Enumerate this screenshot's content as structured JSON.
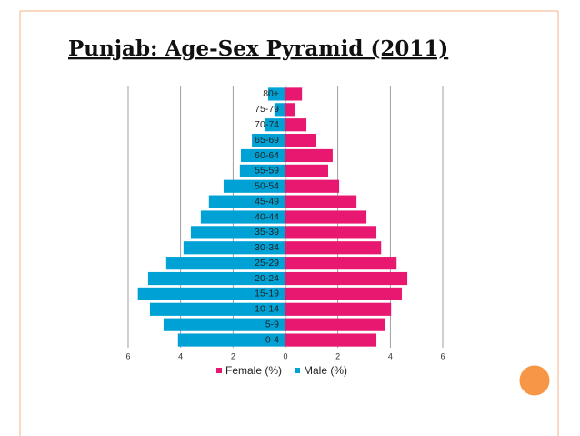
{
  "chart_data": {
    "type": "bar",
    "orientation": "horizontal",
    "stacked": true,
    "title": "Punjab: Age-Sex Pyramid (2011)",
    "categories": [
      "0-4",
      "5-9",
      "10-14",
      "15-19",
      "20-24",
      "25-29",
      "30-34",
      "35-39",
      "40-44",
      "45-49",
      "50-54",
      "55-59",
      "60-64",
      "65-69",
      "70-74",
      "75-79",
      "80+"
    ],
    "series": [
      {
        "name": "Female (%)",
        "color": "#e8176f",
        "values": [
          3.47,
          3.78,
          4.03,
          4.44,
          4.65,
          4.24,
          3.65,
          3.47,
          3.09,
          2.71,
          2.05,
          1.63,
          1.8,
          1.18,
          0.8,
          0.38,
          0.63
        ]
      },
      {
        "name": "Male (%)",
        "color": "#00a2d6",
        "values": [
          -4.1,
          -4.65,
          -5.17,
          -5.63,
          -5.24,
          -4.55,
          -3.89,
          -3.61,
          -3.23,
          -2.92,
          -2.36,
          -1.74,
          -1.7,
          -1.28,
          -0.8,
          -0.42,
          -0.66
        ]
      }
    ],
    "xlim": [
      -6,
      6
    ],
    "xticks": [
      {
        "value": -6,
        "label": "6"
      },
      {
        "value": -4,
        "label": "4"
      },
      {
        "value": -2,
        "label": "2"
      },
      0,
      2,
      4,
      6
    ],
    "grid": true,
    "legend": "bottom"
  }
}
